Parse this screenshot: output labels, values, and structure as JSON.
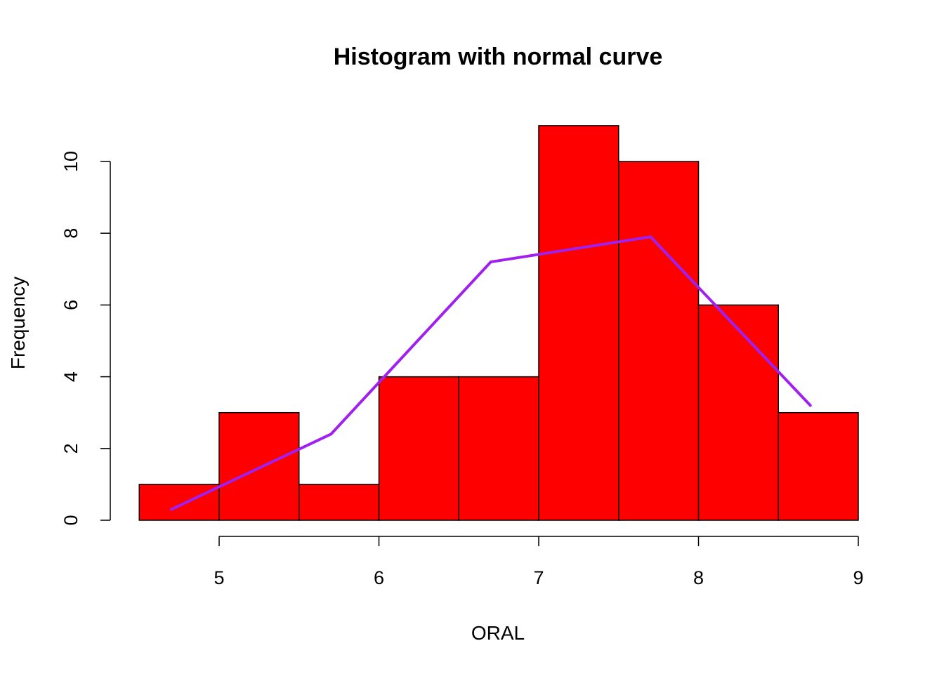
{
  "chart_data": {
    "type": "bar",
    "subtype": "histogram",
    "title": "Histogram with normal curve",
    "xlabel": "ORAL",
    "ylabel": "Frequency",
    "xlim": [
      4.5,
      9.0
    ],
    "ylim": [
      0,
      11
    ],
    "bins": [
      {
        "x0": 4.5,
        "x1": 5.0,
        "count": 1
      },
      {
        "x0": 5.0,
        "x1": 5.5,
        "count": 3
      },
      {
        "x0": 5.5,
        "x1": 6.0,
        "count": 1
      },
      {
        "x0": 6.0,
        "x1": 6.5,
        "count": 4
      },
      {
        "x0": 6.5,
        "x1": 7.0,
        "count": 4
      },
      {
        "x0": 7.0,
        "x1": 7.5,
        "count": 11
      },
      {
        "x0": 7.5,
        "x1": 8.0,
        "count": 10
      },
      {
        "x0": 8.0,
        "x1": 8.5,
        "count": 6
      },
      {
        "x0": 8.5,
        "x1": 9.0,
        "count": 3
      }
    ],
    "x_ticks": [
      5,
      6,
      7,
      8,
      9
    ],
    "y_ticks": [
      0,
      2,
      4,
      6,
      8,
      10
    ],
    "bar_color": "#ff0000",
    "bar_edge_color": "#000000",
    "curve": {
      "x": [
        4.7,
        5.7,
        6.7,
        7.7,
        8.7
      ],
      "y": [
        0.3,
        2.4,
        7.2,
        7.9,
        3.2
      ],
      "color": "#a020f0"
    },
    "grid": false,
    "legend": "none"
  }
}
